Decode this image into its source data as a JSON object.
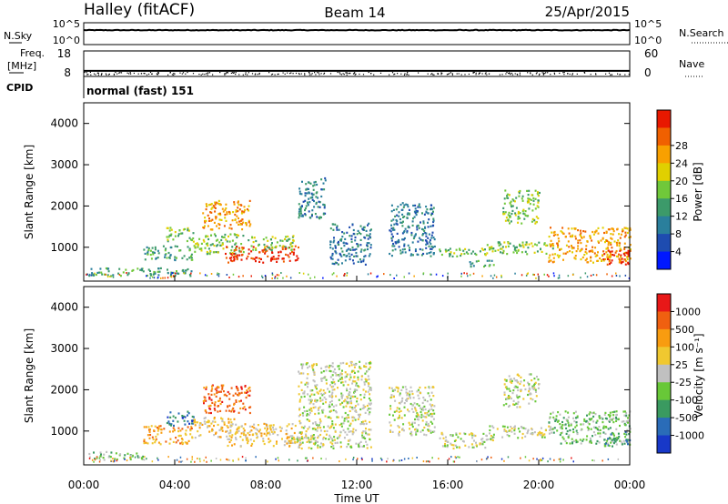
{
  "header": {
    "site": "Halley (fitACF)",
    "beam": "Beam 14",
    "date": "25/Apr/2015"
  },
  "chart_data": [
    {
      "type": "line",
      "panel": "noise",
      "left_label": "N.Sky",
      "right_label": "N.Search",
      "left_ticks": [
        "10^5",
        "10^0"
      ],
      "right_ticks": [
        "10^5",
        "10^0"
      ],
      "series": [
        {
          "values": [
            3.3,
            3.3,
            3.3,
            3.3,
            3.3,
            3.3,
            3.3,
            3.3,
            3.3,
            3.3,
            3.3,
            3.3,
            3.3
          ]
        }
      ]
    },
    {
      "type": "scatter",
      "panel": "frequency",
      "left_label_top": "Freq.",
      "left_label_bottom": "[MHz]",
      "right_label": "Nave",
      "left_ticks": [
        "18",
        "8"
      ],
      "right_ticks": [
        "60",
        "0"
      ],
      "ylim": [
        8,
        18
      ],
      "frequency_mhz": 10.2
    },
    {
      "type": "table",
      "panel": "cpid",
      "label": "CPID",
      "value": "normal (fast) 151"
    },
    {
      "type": "heatmap",
      "panel": "power",
      "ylabel": "Slant Range [km]",
      "yticks": [
        "1000",
        "2000",
        "3000",
        "4000"
      ],
      "ylim": [
        180,
        4500
      ],
      "xlim_hours": [
        0,
        24
      ],
      "colorbar": {
        "label": "Power [dB]",
        "ticks": [
          "4",
          "8",
          "12",
          "16",
          "20",
          "24",
          "28"
        ],
        "colors": [
          "#0018ff",
          "#1e4cb0",
          "#2a7f9c",
          "#3c9a6a",
          "#70c83a",
          "#e0d000",
          "#f8a000",
          "#f06000",
          "#e81800"
        ]
      },
      "regions": [
        {
          "t": [
            0.2,
            4.8
          ],
          "r": [
            320,
            520
          ],
          "level": 3
        },
        {
          "t": [
            2.6,
            4.8
          ],
          "r": [
            700,
            1050
          ],
          "level": 3
        },
        {
          "t": [
            3.6,
            4.8
          ],
          "r": [
            1150,
            1500
          ],
          "level": 4
        },
        {
          "t": [
            5.2,
            7.3
          ],
          "r": [
            1450,
            2150
          ],
          "level": 6
        },
        {
          "t": [
            4.8,
            7.0
          ],
          "r": [
            850,
            1350
          ],
          "level": 4
        },
        {
          "t": [
            6.2,
            9.4
          ],
          "r": [
            650,
            1050
          ],
          "level": 8
        },
        {
          "t": [
            7.2,
            9.2
          ],
          "r": [
            950,
            1300
          ],
          "level": 4
        },
        {
          "t": [
            9.4,
            10.6
          ],
          "r": [
            1700,
            2700
          ],
          "level": 2
        },
        {
          "t": [
            10.8,
            12.6
          ],
          "r": [
            600,
            1600
          ],
          "level": 2
        },
        {
          "t": [
            13.4,
            15.4
          ],
          "r": [
            800,
            2100
          ],
          "level": 2
        },
        {
          "t": [
            15.6,
            17.8
          ],
          "r": [
            800,
            1000
          ],
          "level": 4
        },
        {
          "t": [
            16.8,
            18.0
          ],
          "r": [
            550,
            700
          ],
          "level": 3
        },
        {
          "t": [
            18.4,
            20.0
          ],
          "r": [
            1600,
            2400
          ],
          "level": 4
        },
        {
          "t": [
            17.6,
            20.6
          ],
          "r": [
            850,
            1150
          ],
          "level": 4
        },
        {
          "t": [
            20.4,
            24.0
          ],
          "r": [
            650,
            1500
          ],
          "level": 6
        },
        {
          "t": [
            22.8,
            24.0
          ],
          "r": [
            600,
            950
          ],
          "level": 8
        }
      ]
    },
    {
      "type": "heatmap",
      "panel": "velocity",
      "ylabel": "Slant Range [km]",
      "yticks": [
        "1000",
        "2000",
        "3000",
        "4000"
      ],
      "ylim": [
        180,
        4500
      ],
      "xlim_hours": [
        0,
        24
      ],
      "xticks": [
        "00:00",
        "04:00",
        "08:00",
        "12:00",
        "16:00",
        "20:00",
        "00:00"
      ],
      "xlabel": "Time UT",
      "colorbar": {
        "label": "Velocity [m s⁻¹]",
        "ticks": [
          "1000",
          "500",
          "100",
          "25",
          "-25",
          "-100",
          "-500",
          "-1000"
        ],
        "colors": [
          "#1838c8",
          "#2a6cb8",
          "#3a9a60",
          "#68c838",
          "#c0c0c0",
          "#f0c830",
          "#f89c10",
          "#f06010",
          "#e81818"
        ]
      },
      "regions": [
        {
          "t": [
            0.2,
            2.6
          ],
          "r": [
            320,
            520
          ],
          "level": 3
        },
        {
          "t": [
            2.6,
            4.8
          ],
          "r": [
            700,
            1150
          ],
          "level": 6
        },
        {
          "t": [
            3.6,
            4.8
          ],
          "r": [
            1150,
            1500
          ],
          "level": 1
        },
        {
          "t": [
            5.2,
            7.3
          ],
          "r": [
            1450,
            2150
          ],
          "level": 7
        },
        {
          "t": [
            4.8,
            6.6
          ],
          "r": [
            850,
            1350
          ],
          "level": 5
        },
        {
          "t": [
            6.2,
            9.6
          ],
          "r": [
            650,
            1200
          ],
          "level": 5
        },
        {
          "t": [
            8.6,
            10.4
          ],
          "r": [
            700,
            900
          ],
          "level": 4
        },
        {
          "t": [
            9.4,
            12.6
          ],
          "r": [
            600,
            2700
          ],
          "level": 4
        },
        {
          "t": [
            13.4,
            15.4
          ],
          "r": [
            900,
            2100
          ],
          "level": 4
        },
        {
          "t": [
            15.6,
            18.0
          ],
          "r": [
            600,
            1000
          ],
          "level": 4
        },
        {
          "t": [
            18.4,
            20.0
          ],
          "r": [
            1600,
            2400
          ],
          "level": 4
        },
        {
          "t": [
            17.8,
            20.6
          ],
          "r": [
            850,
            1150
          ],
          "level": 4
        },
        {
          "t": [
            20.4,
            24.0
          ],
          "r": [
            700,
            1500
          ],
          "level": 3
        },
        {
          "t": [
            22.8,
            24.0
          ],
          "r": [
            650,
            1000
          ],
          "level": 2
        }
      ]
    }
  ]
}
